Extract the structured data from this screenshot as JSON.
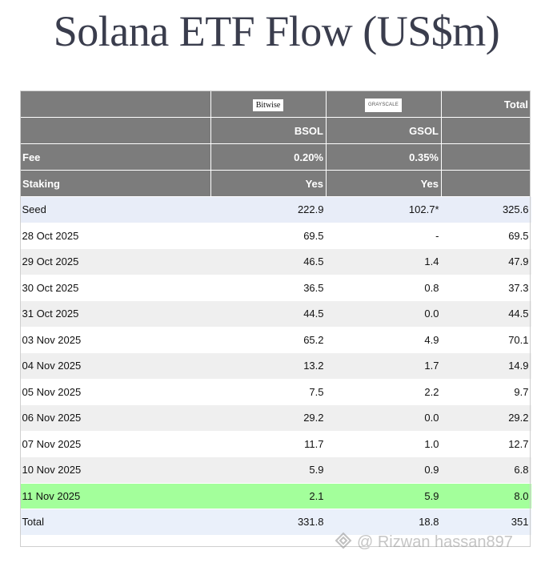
{
  "title": "Solana ETF Flow (US$m)",
  "header": {
    "bitwise_logo": "Bitwise",
    "grayscale_logo": "GRAYSCALE",
    "total_label": "Total",
    "tickers": [
      "BSOL",
      "GSOL"
    ],
    "fee_label": "Fee",
    "fees": [
      "0.20%",
      "0.35%"
    ],
    "staking_label": "Staking",
    "staking": [
      "Yes",
      "Yes"
    ]
  },
  "rows": [
    {
      "date": "Seed",
      "bsol": "222.9",
      "gsol": "102.7*",
      "total": "325.6"
    },
    {
      "date": "28 Oct 2025",
      "bsol": "69.5",
      "gsol": "-",
      "total": "69.5"
    },
    {
      "date": "29 Oct 2025",
      "bsol": "46.5",
      "gsol": "1.4",
      "total": "47.9"
    },
    {
      "date": "30 Oct 2025",
      "bsol": "36.5",
      "gsol": "0.8",
      "total": "37.3"
    },
    {
      "date": "31 Oct 2025",
      "bsol": "44.5",
      "gsol": "0.0",
      "total": "44.5"
    },
    {
      "date": "03 Nov 2025",
      "bsol": "65.2",
      "gsol": "4.9",
      "total": "70.1"
    },
    {
      "date": "04 Nov 2025",
      "bsol": "13.2",
      "gsol": "1.7",
      "total": "14.9"
    },
    {
      "date": "05 Nov 2025",
      "bsol": "7.5",
      "gsol": "2.2",
      "total": "9.7"
    },
    {
      "date": "06 Nov 2025",
      "bsol": "29.2",
      "gsol": "0.0",
      "total": "29.2"
    },
    {
      "date": "07 Nov 2025",
      "bsol": "11.7",
      "gsol": "1.0",
      "total": "12.7"
    },
    {
      "date": "10 Nov 2025",
      "bsol": "5.9",
      "gsol": "0.9",
      "total": "6.8"
    },
    {
      "date": "11 Nov 2025",
      "bsol": "2.1",
      "gsol": "5.9",
      "total": "8.0"
    },
    {
      "date": "Total",
      "bsol": "331.8",
      "gsol": "18.8",
      "total": "351"
    }
  ],
  "watermark": "@ Rizwan hassan897",
  "colors": {
    "header_bg": "#7c7c7c",
    "highlight_row": "#a3ff9b",
    "seed_row": "#e8edf8",
    "stripe_row": "#efefef"
  }
}
